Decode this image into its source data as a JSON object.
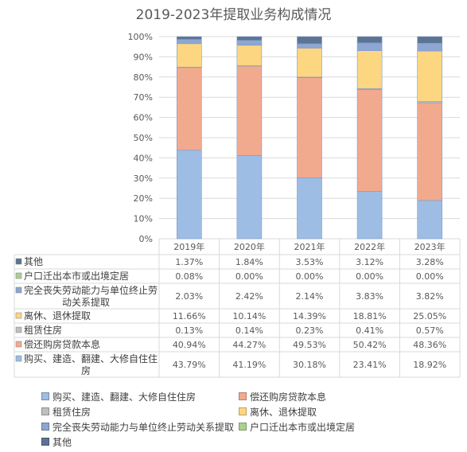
{
  "chart_data": {
    "type": "bar",
    "stacked": true,
    "percent": true,
    "title": "2019-2023年提取业务构成情况",
    "categories": [
      "2019年",
      "2020年",
      "2021年",
      "2022年",
      "2023年"
    ],
    "yticks": [
      "0%",
      "10%",
      "20%",
      "30%",
      "40%",
      "50%",
      "60%",
      "70%",
      "80%",
      "90%",
      "100%"
    ],
    "ylim": [
      0,
      100
    ],
    "grid": true,
    "legend_position": "bottom",
    "series": [
      {
        "name": "购买、建造、翻建、大修自住住房",
        "color": "#9dbde4",
        "values": [
          43.79,
          41.19,
          30.18,
          23.41,
          18.92
        ],
        "labels": [
          "43.79%",
          "41.19%",
          "30.18%",
          "23.41%",
          "18.92%"
        ]
      },
      {
        "name": "偿还购房贷款本息",
        "color": "#f2aa8e",
        "values": [
          40.94,
          44.27,
          49.53,
          50.42,
          48.36
        ],
        "labels": [
          "40.94%",
          "44.27%",
          "49.53%",
          "50.42%",
          "48.36%"
        ]
      },
      {
        "name": "租赁住房",
        "color": "#bfbfbf",
        "values": [
          0.13,
          0.14,
          0.23,
          0.41,
          0.57
        ],
        "labels": [
          "0.13%",
          "0.14%",
          "0.23%",
          "0.41%",
          "0.57%"
        ]
      },
      {
        "name": "离休、退休提取",
        "color": "#fcd680",
        "values": [
          11.66,
          10.14,
          14.39,
          18.81,
          25.05
        ],
        "labels": [
          "11.66%",
          "10.14%",
          "14.39%",
          "18.81%",
          "25.05%"
        ]
      },
      {
        "name": "完全丧失劳动能力与单位终止劳动关系提取",
        "color": "#8ea6d3",
        "values": [
          2.03,
          2.42,
          2.14,
          3.83,
          3.82
        ],
        "labels": [
          "2.03%",
          "2.42%",
          "2.14%",
          "3.83%",
          "3.82%"
        ]
      },
      {
        "name": "户口迁出本市或出境定居",
        "color": "#a9d18e",
        "values": [
          0.08,
          0.0,
          0.0,
          0.0,
          0.0
        ],
        "labels": [
          "0.08%",
          "0.00%",
          "0.00%",
          "0.00%",
          "0.00%"
        ]
      },
      {
        "name": "其他",
        "color": "#5b7494",
        "values": [
          1.37,
          1.84,
          3.53,
          3.12,
          3.28
        ],
        "labels": [
          "1.37%",
          "1.84%",
          "3.53%",
          "3.12%",
          "3.28%"
        ]
      }
    ],
    "table_row_labels": [
      [
        "其他"
      ],
      [
        "户口迁出本市或出境定居"
      ],
      [
        "完全丧失劳动能力与单位终止劳",
        "动关系提取"
      ],
      [
        "离休、退休提取"
      ],
      [
        "租赁住房"
      ],
      [
        "偿还购房贷款本息"
      ],
      [
        "购买、建造、翻建、大修自住住",
        "房"
      ]
    ]
  }
}
